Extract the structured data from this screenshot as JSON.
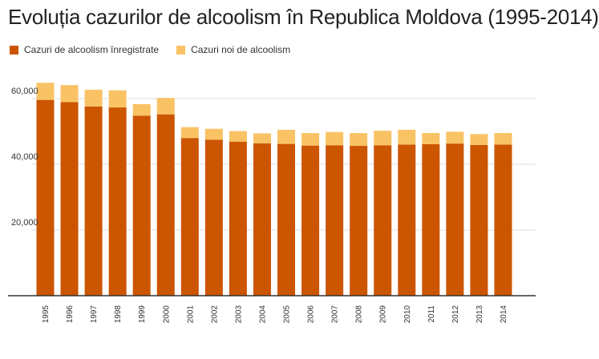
{
  "chart_data": {
    "type": "bar",
    "stacked": true,
    "title": "Evoluția cazurilor de alcoolism în Republica Moldova (1995-2014)",
    "categories": [
      "1995",
      "1996",
      "1997",
      "1998",
      "1999",
      "2000",
      "2001",
      "2002",
      "2003",
      "2004",
      "2005",
      "2006",
      "2007",
      "2008",
      "2009",
      "2010",
      "2011",
      "2012",
      "2013",
      "2014"
    ],
    "series": [
      {
        "name": "Cazuri de alcoolism înregistrate",
        "color": "#cc5500",
        "values": [
          59600,
          58900,
          57600,
          57300,
          54800,
          55200,
          48000,
          47500,
          46900,
          46400,
          46200,
          45700,
          45800,
          45600,
          45800,
          46000,
          46100,
          46300,
          45900,
          46000
        ]
      },
      {
        "name": "Cazuri noi de alcoolism",
        "color": "#f9c365",
        "values": [
          5200,
          5200,
          5100,
          5200,
          3500,
          5000,
          3300,
          3300,
          3200,
          3000,
          4300,
          3800,
          4000,
          3900,
          4400,
          4500,
          3400,
          3600,
          3300,
          3500
        ]
      }
    ],
    "yticks": [
      20000,
      40000,
      60000
    ],
    "ytick_labels": [
      "20,000",
      "40,000",
      "60,000"
    ],
    "ylim": [
      0,
      65000
    ],
    "grid": true,
    "legend": "top-left",
    "xlabel": "",
    "ylabel": ""
  }
}
